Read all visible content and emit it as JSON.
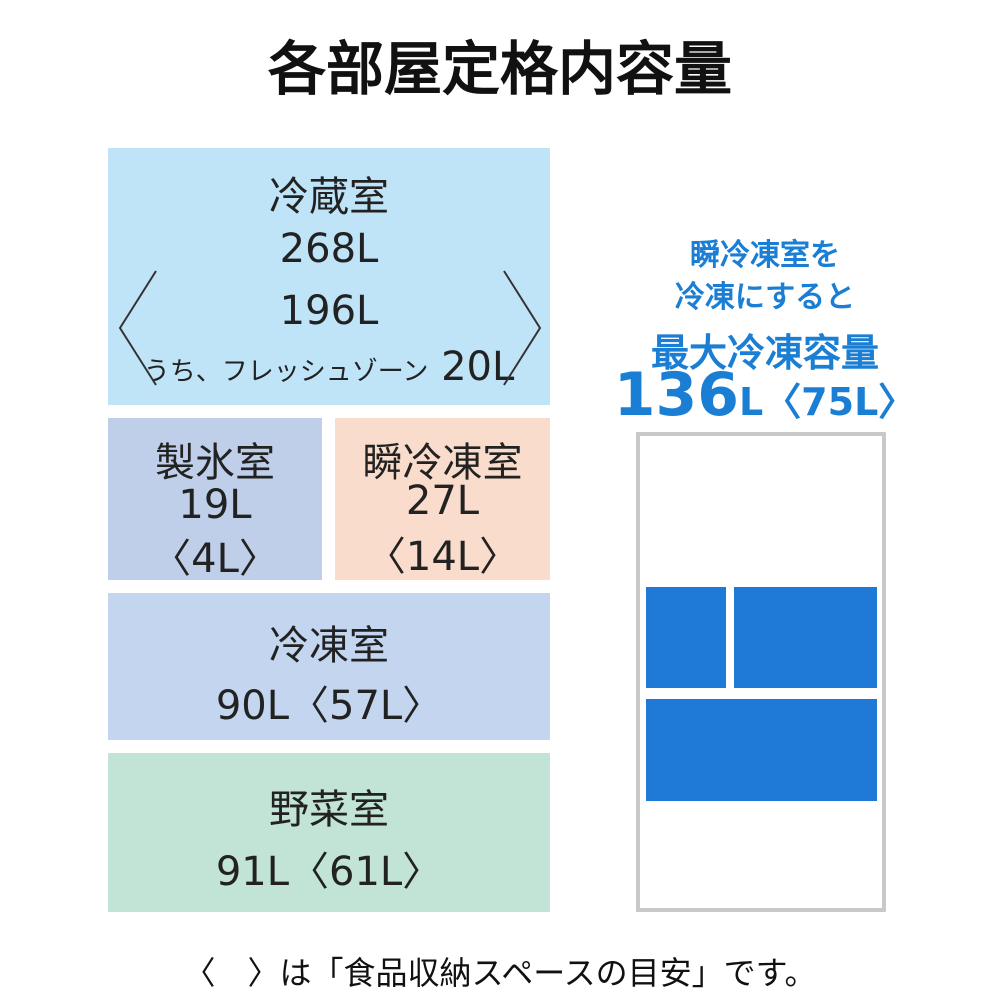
{
  "title": "各部屋定格内容量",
  "compartments": {
    "refrigerator": {
      "name": "冷蔵室",
      "capacity": "268L",
      "inner": "196L",
      "fresh_zone_label": "うち、フレッシュゾーン",
      "fresh_zone": "20L"
    },
    "ice": {
      "name": "製氷室",
      "capacity": "19L",
      "storage": "〈4L〉"
    },
    "quick_freeze": {
      "name": "瞬冷凍室",
      "capacity": "27L",
      "storage": "〈14L〉"
    },
    "freezer": {
      "name": "冷凍室",
      "capacity": "90L〈57L〉"
    },
    "vegetable": {
      "name": "野菜室",
      "capacity": "91L〈61L〉"
    }
  },
  "side_note": {
    "line1": "瞬冷凍室を",
    "line2": "冷凍にすると",
    "heading": "最大冷凍容量",
    "total_number": "136",
    "total_rest": "L〈75L〉"
  },
  "footnote": "〈　〉は「食品収納スペースの目安」です。"
}
